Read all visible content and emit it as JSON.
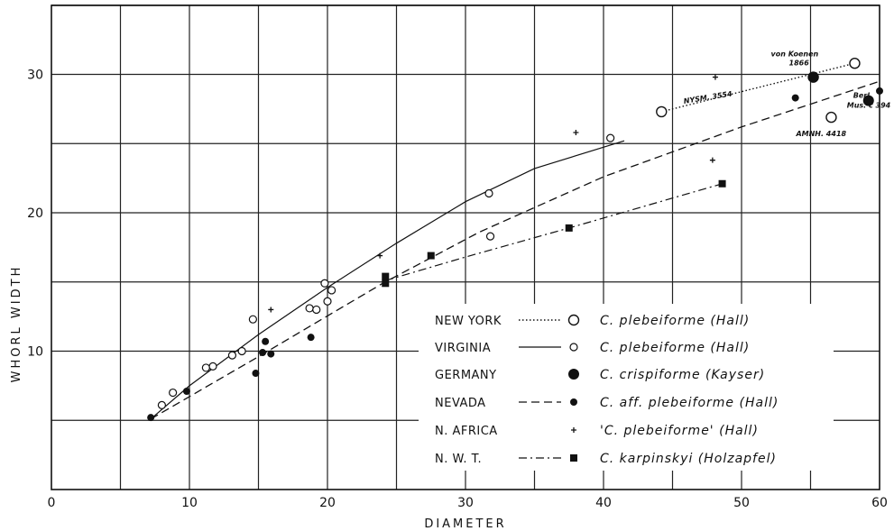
{
  "chart_data": {
    "type": "scatter",
    "xlabel": "DIAMETER",
    "ylabel": "WHORL   WIDTH",
    "xlim": [
      0,
      60
    ],
    "ylim": [
      0,
      35
    ],
    "xticks": [
      0,
      10,
      20,
      30,
      40,
      50,
      60
    ],
    "yticks": [
      10,
      20,
      30
    ],
    "grid": true,
    "legend_position": "bottom-right",
    "series": [
      {
        "name": "NEW YORK",
        "label": "C. plebeiforme (Hall)",
        "marker": "open-circle-large",
        "line": "dotted",
        "points": [
          [
            44.2,
            27.3
          ],
          [
            55.2,
            29.8
          ],
          [
            58.2,
            30.8
          ],
          [
            56.5,
            26.9
          ]
        ],
        "fit": [
          [
            44.2,
            27.3
          ],
          [
            58.2,
            30.8
          ]
        ]
      },
      {
        "name": "VIRGINIA",
        "label": "C. plebeiforme (Hall)",
        "marker": "open-circle-small",
        "line": "solid",
        "points": [
          [
            8.0,
            6.1
          ],
          [
            8.8,
            7.0
          ],
          [
            11.2,
            8.8
          ],
          [
            11.7,
            8.9
          ],
          [
            13.1,
            9.7
          ],
          [
            13.8,
            10.0
          ],
          [
            14.6,
            12.3
          ],
          [
            18.7,
            13.1
          ],
          [
            19.2,
            13.0
          ],
          [
            19.8,
            14.9
          ],
          [
            20.0,
            13.6
          ],
          [
            20.3,
            14.4
          ],
          [
            31.7,
            21.4
          ],
          [
            31.8,
            18.3
          ],
          [
            40.5,
            25.4
          ]
        ],
        "fit": [
          [
            7.2,
            5.1
          ],
          [
            10,
            7.5
          ],
          [
            15,
            11.2
          ],
          [
            20,
            14.6
          ],
          [
            25,
            17.8
          ],
          [
            30,
            20.8
          ],
          [
            35,
            23.2
          ],
          [
            41.5,
            25.2
          ]
        ]
      },
      {
        "name": "GERMANY",
        "label": "C. crispiforme (Kayser)",
        "marker": "filled-circle-large",
        "line": "none",
        "points": [
          [
            55.2,
            29.8
          ],
          [
            59.2,
            28.1
          ]
        ]
      },
      {
        "name": "NEVADA",
        "label": "C. aff. plebeiforme (Hall)",
        "marker": "filled-circle-small",
        "line": "dashed",
        "points": [
          [
            7.2,
            5.2
          ],
          [
            9.8,
            7.1
          ],
          [
            14.8,
            8.4
          ],
          [
            15.3,
            9.9
          ],
          [
            15.5,
            10.7
          ],
          [
            15.9,
            9.8
          ],
          [
            18.8,
            11.0
          ],
          [
            53.9,
            28.3
          ],
          [
            60.0,
            28.8
          ]
        ],
        "fit": [
          [
            7.2,
            5.1
          ],
          [
            15,
            9.6
          ],
          [
            24,
            14.9
          ],
          [
            31,
            18.6
          ],
          [
            40,
            22.6
          ],
          [
            50,
            26.2
          ],
          [
            60,
            29.5
          ]
        ]
      },
      {
        "name": "N. AFRICA",
        "label": "'C. plebeiforme' (Hall)",
        "marker": "plus",
        "line": "none",
        "points": [
          [
            15.9,
            13.0
          ],
          [
            23.8,
            16.9
          ],
          [
            38.0,
            25.8
          ],
          [
            47.9,
            23.8
          ],
          [
            48.1,
            29.8
          ]
        ]
      },
      {
        "name": "N. W. T.",
        "label": "C. karpinskyi    (Holzapfel)",
        "marker": "filled-square",
        "line": "dashdot",
        "points": [
          [
            24.2,
            15.4
          ],
          [
            24.2,
            14.9
          ],
          [
            27.5,
            16.9
          ],
          [
            37.5,
            18.9
          ],
          [
            48.6,
            22.1
          ]
        ],
        "fit": [
          [
            24.2,
            15.1
          ],
          [
            30,
            16.8
          ],
          [
            37.5,
            18.9
          ],
          [
            48.6,
            22.1
          ]
        ]
      }
    ],
    "annotations": [
      {
        "text": "von Koenen",
        "at": [
          55.2,
          29.8
        ]
      },
      {
        "text": "1866",
        "at": [
          55.2,
          29.8
        ]
      },
      {
        "text": "NYSM. 3554",
        "at": [
          44.2,
          27.3
        ]
      },
      {
        "text": "Berl.",
        "at": [
          59.2,
          28.1
        ]
      },
      {
        "text": "Mus. c 394",
        "at": [
          59.2,
          28.1
        ]
      },
      {
        "text": "AMNH. 4418",
        "at": [
          56.5,
          26.9
        ]
      }
    ]
  }
}
